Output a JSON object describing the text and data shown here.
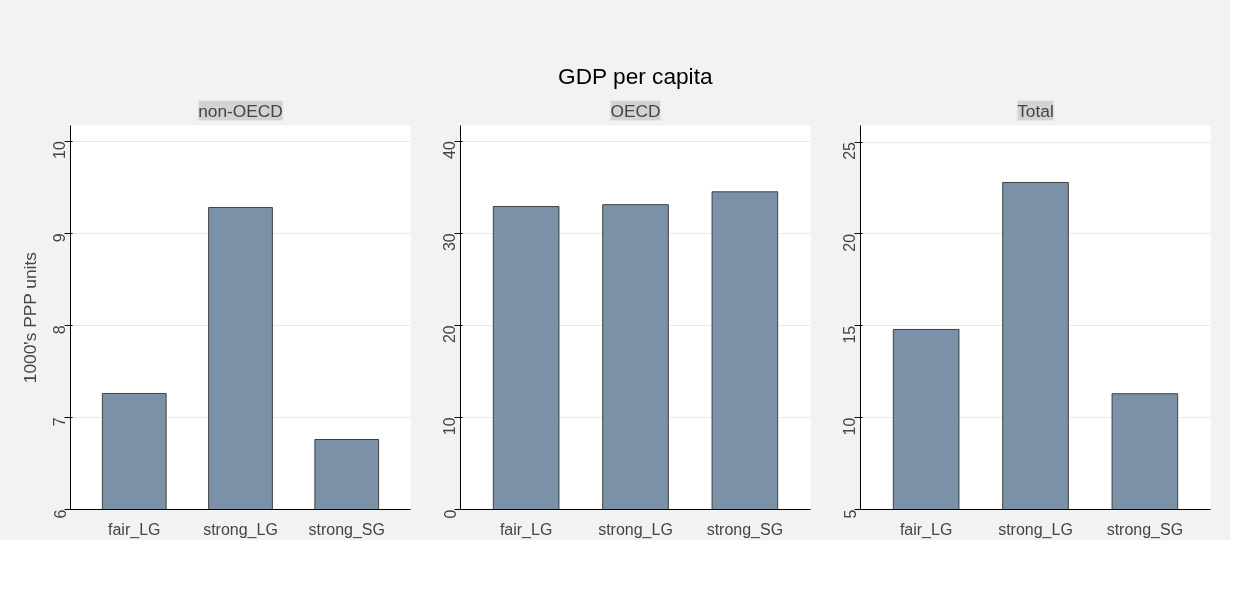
{
  "chart_data": [
    {
      "type": "bar",
      "subtitle": "non-OECD",
      "ylabel": "1000's PPP units",
      "categories": [
        "fair_LG",
        "strong_LG",
        "strong_SG"
      ],
      "values": [
        7.26,
        9.28,
        6.76
      ],
      "color": "#7b91a8",
      "ylim": [
        6,
        10.17
      ],
      "yticks": [
        6,
        7,
        8,
        9,
        10
      ],
      "grid": "y"
    },
    {
      "type": "bar",
      "title": "GDP per capita",
      "subtitle": "OECD",
      "categories": [
        "fair_LG",
        "strong_LG",
        "strong_SG"
      ],
      "values": [
        32.9,
        33.1,
        34.5
      ],
      "color": "#7b91a8",
      "ylim": [
        0,
        41.7
      ],
      "yticks": [
        0,
        10,
        20,
        30,
        40
      ],
      "grid": "y"
    },
    {
      "type": "bar",
      "subtitle": "Total",
      "categories": [
        "fair_LG",
        "strong_LG",
        "strong_SG"
      ],
      "values": [
        14.8,
        22.8,
        11.3
      ],
      "color": "#7b91a8",
      "ylim": [
        5,
        25.9
      ],
      "yticks": [
        5,
        10,
        15,
        20,
        25
      ],
      "grid": "y"
    }
  ]
}
